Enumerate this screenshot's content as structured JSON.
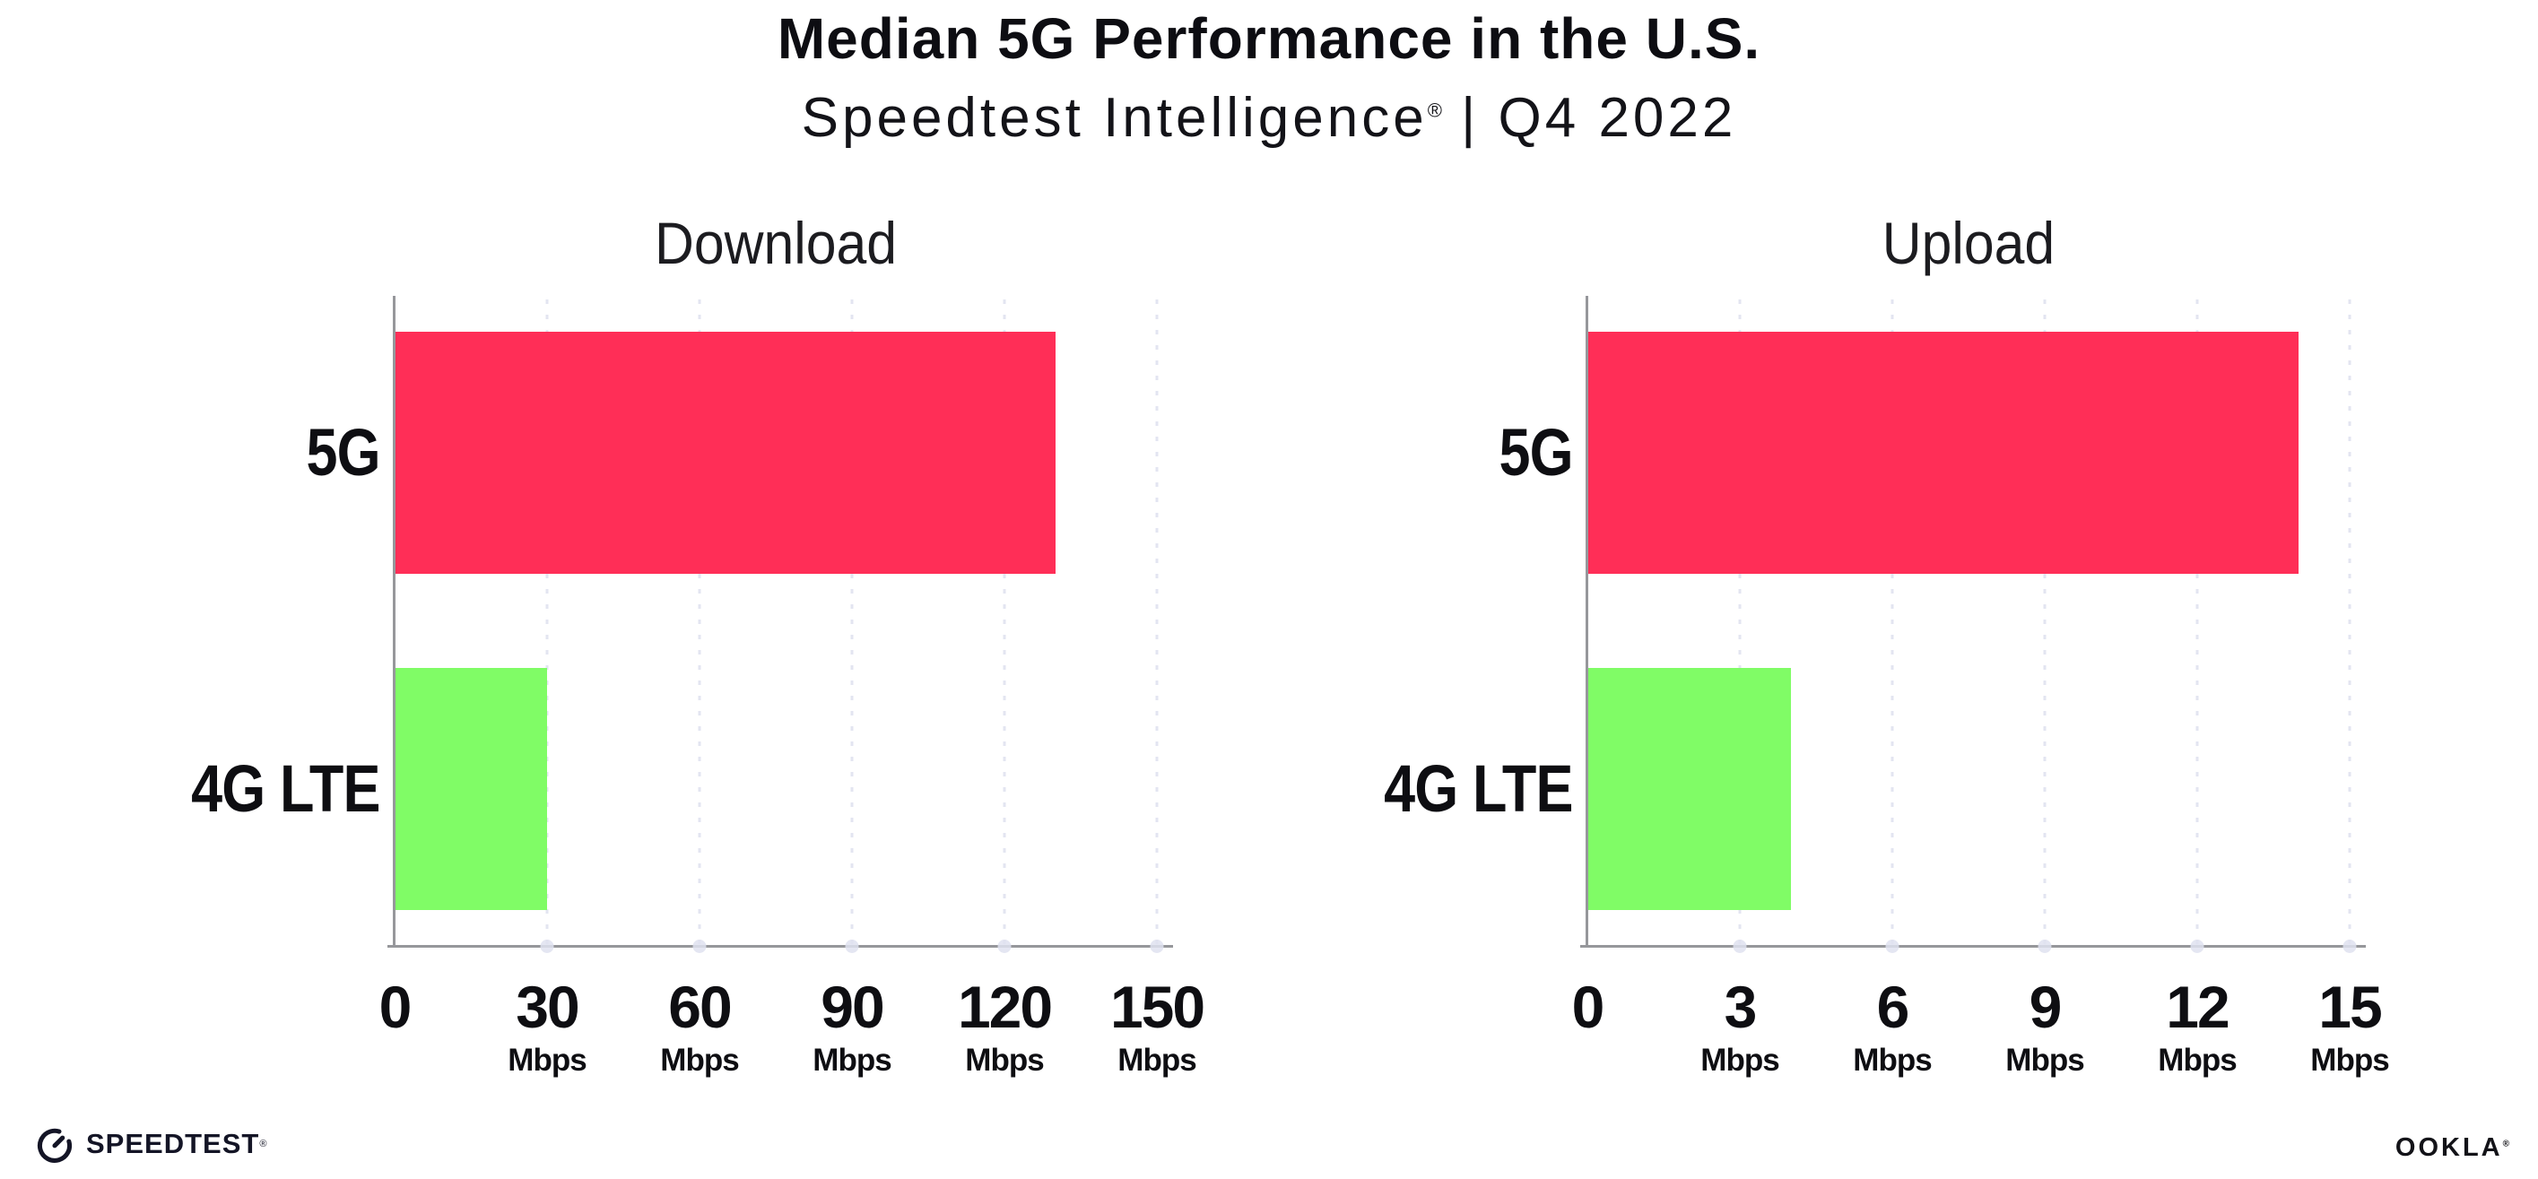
{
  "header": {
    "title": "Median 5G Performance in the U.S.",
    "subtitle_brand": "Speedtest Intelligence",
    "subtitle_reg": "®",
    "subtitle_rest": " | Q4 2022"
  },
  "chart_data": [
    {
      "type": "bar",
      "orientation": "horizontal",
      "title": "Download",
      "categories": [
        "5G",
        "4G LTE"
      ],
      "values": [
        130,
        30
      ],
      "unit": "Mbps",
      "xlim": [
        0,
        150
      ],
      "xticks": [
        0,
        30,
        60,
        90,
        120,
        150
      ],
      "bar_colors": [
        "#FF2E57",
        "#80FC66"
      ],
      "grid": "dotted-vertical",
      "legend": "none"
    },
    {
      "type": "bar",
      "orientation": "horizontal",
      "title": "Upload",
      "categories": [
        "5G",
        "4G LTE"
      ],
      "values": [
        14,
        4
      ],
      "unit": "Mbps",
      "xlim": [
        0,
        15
      ],
      "xticks": [
        0,
        3,
        6,
        9,
        12,
        15
      ],
      "bar_colors": [
        "#FF2E57",
        "#80FC66"
      ],
      "grid": "dotted-vertical",
      "legend": "none"
    }
  ],
  "footer": {
    "speedtest_label": "SPEEDTEST",
    "speedtest_reg": "®",
    "ookla_label": "OOKLA",
    "ookla_reg": "®"
  },
  "colors": {
    "bar_5g": "#FF2E57",
    "bar_4g_lte": "#80FC66",
    "axis": "#96979B",
    "gridline": "#E3E5F1",
    "text": "#111111"
  }
}
